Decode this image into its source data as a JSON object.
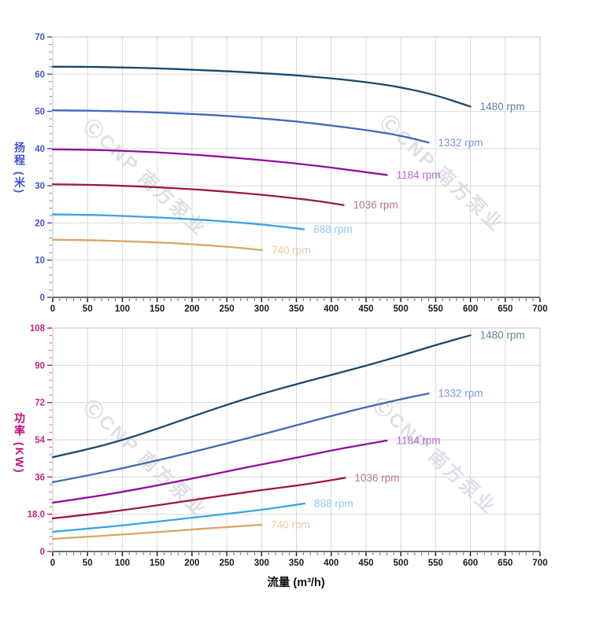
{
  "watermark": {
    "text": "ⒸCNP 南方泵业"
  },
  "colors": {
    "grid": "#d9d9d9",
    "border": "#c6c6c6",
    "x_axis": "#3b3b3b",
    "x_tick_label": "#1b1b1b"
  },
  "chart_data": [
    {
      "id": "head",
      "type": "line",
      "title": "",
      "xlabel": "",
      "ylabel": "扬程 (米)",
      "xlim": [
        0,
        700
      ],
      "ylim": [
        0,
        70
      ],
      "x_major": 50,
      "x_minor": 10,
      "y_major": 10,
      "y_minor": 2,
      "grid": true,
      "axis_tick_color": "#4355cd",
      "x_ticks": [
        0,
        50,
        100,
        150,
        200,
        250,
        300,
        350,
        400,
        450,
        500,
        550,
        600,
        650,
        700
      ],
      "y_ticks": [
        "0",
        "10",
        "20",
        "30",
        "40",
        "50",
        "60",
        "70"
      ],
      "series": [
        {
          "name": "1480 rpm",
          "color": "#17476f",
          "label_color": "#64809c",
          "points": [
            [
              0,
              62
            ],
            [
              50,
              62
            ],
            [
              100,
              61.8
            ],
            [
              150,
              61.6
            ],
            [
              200,
              61.2
            ],
            [
              250,
              60.8
            ],
            [
              300,
              60.3
            ],
            [
              350,
              59.7
            ],
            [
              400,
              58.9
            ],
            [
              450,
              57.9
            ],
            [
              500,
              56.5
            ],
            [
              550,
              54.4
            ],
            [
              600,
              51.3
            ]
          ]
        },
        {
          "name": "1332 rpm",
          "color": "#4169b5",
          "label_color": "#7e97d6",
          "points": [
            [
              0,
              50.3
            ],
            [
              50,
              50.2
            ],
            [
              100,
              50
            ],
            [
              150,
              49.7
            ],
            [
              200,
              49.3
            ],
            [
              250,
              48.8
            ],
            [
              300,
              48.1
            ],
            [
              350,
              47.3
            ],
            [
              400,
              46.2
            ],
            [
              450,
              45
            ],
            [
              500,
              43.5
            ],
            [
              540,
              41.6
            ]
          ]
        },
        {
          "name": "1184 rpm",
          "color": "#8f0f9e",
          "label_color": "#b36cc3",
          "points": [
            [
              0,
              39.8
            ],
            [
              50,
              39.7
            ],
            [
              100,
              39.4
            ],
            [
              150,
              39
            ],
            [
              200,
              38.4
            ],
            [
              250,
              37.7
            ],
            [
              300,
              36.9
            ],
            [
              350,
              36
            ],
            [
              400,
              34.9
            ],
            [
              440,
              33.9
            ],
            [
              480,
              32.9
            ]
          ]
        },
        {
          "name": "1036 rpm",
          "color": "#9c1a3d",
          "label_color": "#bd7389",
          "points": [
            [
              0,
              30.4
            ],
            [
              50,
              30.3
            ],
            [
              100,
              30
            ],
            [
              150,
              29.6
            ],
            [
              200,
              29.1
            ],
            [
              250,
              28.4
            ],
            [
              300,
              27.6
            ],
            [
              350,
              26.6
            ],
            [
              385,
              25.8
            ],
            [
              418,
              24.8
            ]
          ]
        },
        {
          "name": "888 rpm",
          "color": "#3aa4e0",
          "label_color": "#8ec9ef",
          "points": [
            [
              0,
              22.3
            ],
            [
              50,
              22.2
            ],
            [
              100,
              21.9
            ],
            [
              150,
              21.5
            ],
            [
              200,
              21
            ],
            [
              250,
              20.4
            ],
            [
              300,
              19.6
            ],
            [
              330,
              19
            ],
            [
              361,
              18.3
            ]
          ]
        },
        {
          "name": "740 rpm",
          "color": "#d9a666",
          "label_color": "#ecca9e",
          "points": [
            [
              0,
              15.5
            ],
            [
              50,
              15.4
            ],
            [
              100,
              15.1
            ],
            [
              150,
              14.8
            ],
            [
              200,
              14.3
            ],
            [
              250,
              13.6
            ],
            [
              275,
              13.2
            ],
            [
              301,
              12.7
            ]
          ]
        }
      ]
    },
    {
      "id": "power",
      "type": "line",
      "title": "",
      "xlabel": "流量 (m³/h)",
      "ylabel": "功率 (KW)",
      "xlim": [
        0,
        700
      ],
      "ylim": [
        0,
        108
      ],
      "x_major": 50,
      "x_minor": 10,
      "y_major": 18,
      "y_minor": 3.6,
      "grid": true,
      "axis_tick_color": "#c8267f",
      "x_ticks": [
        0,
        50,
        100,
        150,
        200,
        250,
        300,
        350,
        400,
        450,
        500,
        550,
        600,
        650,
        700
      ],
      "y_ticks": [
        "0",
        "18.0",
        "36",
        "54",
        "72",
        "90",
        "108"
      ],
      "series": [
        {
          "name": "1480 rpm",
          "color": "#17476f",
          "label_color": "#64809c",
          "points": [
            [
              0,
              45.6
            ],
            [
              50,
              49.3
            ],
            [
              100,
              53.8
            ],
            [
              150,
              59.3
            ],
            [
              200,
              65.2
            ],
            [
              250,
              70.9
            ],
            [
              300,
              76.2
            ],
            [
              350,
              80.9
            ],
            [
              400,
              85.3
            ],
            [
              450,
              89.8
            ],
            [
              500,
              94.6
            ],
            [
              550,
              99.8
            ],
            [
              600,
              104.5
            ]
          ]
        },
        {
          "name": "1332 rpm",
          "color": "#4169b5",
          "label_color": "#7e97d6",
          "points": [
            [
              0,
              33.5
            ],
            [
              50,
              36.7
            ],
            [
              100,
              40.2
            ],
            [
              150,
              44
            ],
            [
              200,
              48
            ],
            [
              250,
              52.2
            ],
            [
              300,
              56.5
            ],
            [
              350,
              61
            ],
            [
              400,
              65.5
            ],
            [
              450,
              69.8
            ],
            [
              500,
              73.6
            ],
            [
              540,
              76.4
            ]
          ]
        },
        {
          "name": "1184 rpm",
          "color": "#8f0f9e",
          "label_color": "#b36cc3",
          "points": [
            [
              0,
              23.6
            ],
            [
              50,
              26
            ],
            [
              100,
              28.8
            ],
            [
              150,
              31.9
            ],
            [
              200,
              35.2
            ],
            [
              250,
              38.7
            ],
            [
              300,
              42.1
            ],
            [
              350,
              45.3
            ],
            [
              400,
              48.8
            ],
            [
              440,
              51.3
            ],
            [
              480,
              53.6
            ]
          ]
        },
        {
          "name": "1036 rpm",
          "color": "#9c1a3d",
          "label_color": "#bd7389",
          "points": [
            [
              0,
              16
            ],
            [
              50,
              17.8
            ],
            [
              100,
              19.9
            ],
            [
              150,
              22.3
            ],
            [
              200,
              24.8
            ],
            [
              250,
              27.3
            ],
            [
              300,
              29.7
            ],
            [
              354,
              32
            ],
            [
              390,
              33.9
            ],
            [
              420,
              35.6
            ]
          ]
        },
        {
          "name": "888 rpm",
          "color": "#3aa4e0",
          "label_color": "#8ec9ef",
          "points": [
            [
              0,
              9.5
            ],
            [
              50,
              11
            ],
            [
              100,
              12.6
            ],
            [
              150,
              14.4
            ],
            [
              200,
              16.3
            ],
            [
              250,
              18.2
            ],
            [
              300,
              20.1
            ],
            [
              330,
              21.6
            ],
            [
              362,
              23.2
            ]
          ]
        },
        {
          "name": "740 rpm",
          "color": "#d9a666",
          "label_color": "#ecca9e",
          "points": [
            [
              0,
              6.1
            ],
            [
              50,
              7.1
            ],
            [
              100,
              8.2
            ],
            [
              150,
              9.4
            ],
            [
              200,
              10.6
            ],
            [
              250,
              11.8
            ],
            [
              300,
              12.9
            ]
          ]
        }
      ]
    }
  ]
}
